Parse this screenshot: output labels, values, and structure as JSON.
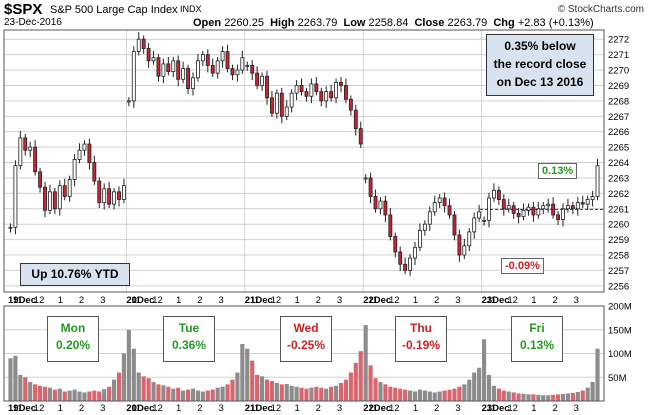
{
  "header": {
    "ticker": "$SPX",
    "index_name": "S&P 500 Large Cap Index",
    "exchange": "INDX",
    "date": "23-Dec-2016",
    "open_label": "Open",
    "open": "2260.25",
    "high_label": "High",
    "high": "2263.79",
    "low_label": "Low",
    "low": "2258.84",
    "close_label": "Close",
    "close": "2263.79",
    "chg_label": "Chg",
    "chg": "+2.83 (+0.13%)",
    "credit": "© StockCharts.com"
  },
  "annotations": {
    "record_line1": "0.35% below",
    "record_line2": "the record close",
    "record_line3": "on Dec 13 2016",
    "ytd": "Up 10.76% YTD",
    "last_change": "0.13%",
    "low_change": "-0.09%"
  },
  "days": [
    {
      "name": "Mon",
      "change": "0.20%",
      "direction": "up"
    },
    {
      "name": "Tue",
      "change": "0.36%",
      "direction": "up"
    },
    {
      "name": "Wed",
      "change": "-0.25%",
      "direction": "down"
    },
    {
      "name": "Thu",
      "change": "-0.19%",
      "direction": "down"
    },
    {
      "name": "Fri",
      "change": "0.13%",
      "direction": "up"
    }
  ],
  "colors": {
    "up": "#222222",
    "down": "#cc2233",
    "volume_up": "#8c8c8c",
    "volume_down": "#d9666e",
    "grid": "#d0d0d0",
    "ref_line": "#1a1aaa",
    "up_text": "#229a22",
    "down_text": "#d02020",
    "box_bg": "#d9e3f0"
  },
  "chart_data": {
    "type": "candlestick",
    "title": "$SPX S&P 500 Large Cap Index INDX",
    "x_tick_labels": [
      "19Dec",
      "11",
      "12",
      "1",
      "2",
      "3",
      "20Dec",
      "11",
      "12",
      "1",
      "2",
      "3",
      "21Dec",
      "11",
      "12",
      "1",
      "2",
      "3",
      "22Dec",
      "11",
      "12",
      "1",
      "2",
      "3",
      "23Dec",
      "11",
      "12",
      "1",
      "2",
      "3"
    ],
    "y_ticks": [
      2256,
      2257,
      2258,
      2259,
      2260,
      2261,
      2262,
      2263,
      2264,
      2265,
      2266,
      2267,
      2268,
      2269,
      2270,
      2271,
      2272
    ],
    "ylim": [
      2255.6,
      2272.6
    ],
    "volume_ticks": [
      "50M",
      "100M",
      "150M",
      "200M"
    ],
    "volume_ylim": [
      0,
      200
    ],
    "reference_close": 2260.96,
    "sessions": [
      {
        "day": "Mon",
        "open": 2259.8,
        "close": 2262.5,
        "path": [
          2259.8,
          2263.8,
          2265.6,
          2264.8,
          2265.0,
          2263.4,
          2262.4,
          2260.9,
          2262.1,
          2261.0,
          2262.5,
          2261.8,
          2262.9,
          2264.2,
          2264.8,
          2265.2,
          2264.0,
          2262.8,
          2261.4,
          2262.3,
          2261.3,
          2262.1,
          2261.6,
          2262.5
        ],
        "volume": [
          90,
          95,
          55,
          50,
          40,
          35,
          32,
          30,
          28,
          24,
          26,
          20,
          22,
          24,
          20,
          18,
          20,
          22,
          20,
          25,
          30,
          45,
          60,
          100
        ]
      },
      {
        "day": "Tue",
        "open": 2268.0,
        "close": 2270.8,
        "path": [
          2268.0,
          2271.2,
          2272.0,
          2271.4,
          2270.6,
          2270.8,
          2269.6,
          2270.4,
          2269.9,
          2270.6,
          2269.4,
          2270.1,
          2268.8,
          2269.5,
          2270.6,
          2271.0,
          2270.3,
          2269.8,
          2270.6,
          2271.2,
          2270.1,
          2269.7,
          2270.0,
          2270.8
        ],
        "volume": [
          150,
          110,
          60,
          52,
          48,
          40,
          35,
          33,
          30,
          26,
          28,
          22,
          24,
          26,
          22,
          20,
          22,
          24,
          28,
          30,
          35,
          45,
          60,
          120
        ]
      },
      {
        "day": "Wed",
        "open": 2270.3,
        "close": 2265.2,
        "path": [
          2270.3,
          2269.8,
          2269.0,
          2269.6,
          2268.2,
          2267.2,
          2268.5,
          2267.0,
          2267.6,
          2268.5,
          2269.0,
          2268.6,
          2268.3,
          2269.1,
          2268.6,
          2268.0,
          2268.6,
          2268.2,
          2269.2,
          2269.0,
          2268.1,
          2267.4,
          2266.2,
          2265.2
        ],
        "volume": [
          110,
          85,
          55,
          52,
          45,
          42,
          38,
          35,
          36,
          32,
          30,
          28,
          26,
          28,
          30,
          28,
          26,
          30,
          32,
          38,
          45,
          60,
          80,
          105
        ]
      },
      {
        "day": "Thu",
        "open": 2263.0,
        "close": 2260.8,
        "path": [
          2263.0,
          2261.8,
          2261.0,
          2261.5,
          2260.6,
          2259.2,
          2258.2,
          2257.4,
          2257.0,
          2257.8,
          2258.5,
          2259.6,
          2260.0,
          2260.8,
          2261.4,
          2261.7,
          2261.2,
          2260.6,
          2259.3,
          2258.0,
          2258.6,
          2259.5,
          2260.4,
          2260.8
        ],
        "volume": [
          160,
          75,
          48,
          40,
          35,
          30,
          28,
          26,
          24,
          22,
          20,
          24,
          22,
          20,
          18,
          20,
          22,
          24,
          26,
          30,
          35,
          45,
          60,
          70
        ]
      },
      {
        "day": "Fri",
        "open": 2260.25,
        "close": 2263.79,
        "path": [
          2260.25,
          2261.7,
          2262.2,
          2261.6,
          2261.0,
          2261.2,
          2260.7,
          2260.5,
          2260.9,
          2261.1,
          2260.6,
          2261.0,
          2261.2,
          2261.3,
          2260.6,
          2260.3,
          2261.0,
          2261.2,
          2261.0,
          2261.4,
          2261.3,
          2261.6,
          2261.8,
          2263.79
        ],
        "volume": [
          130,
          55,
          32,
          26,
          22,
          20,
          18,
          16,
          15,
          14,
          14,
          13,
          12,
          12,
          13,
          14,
          15,
          16,
          17,
          19,
          22,
          28,
          40,
          110
        ]
      }
    ]
  }
}
